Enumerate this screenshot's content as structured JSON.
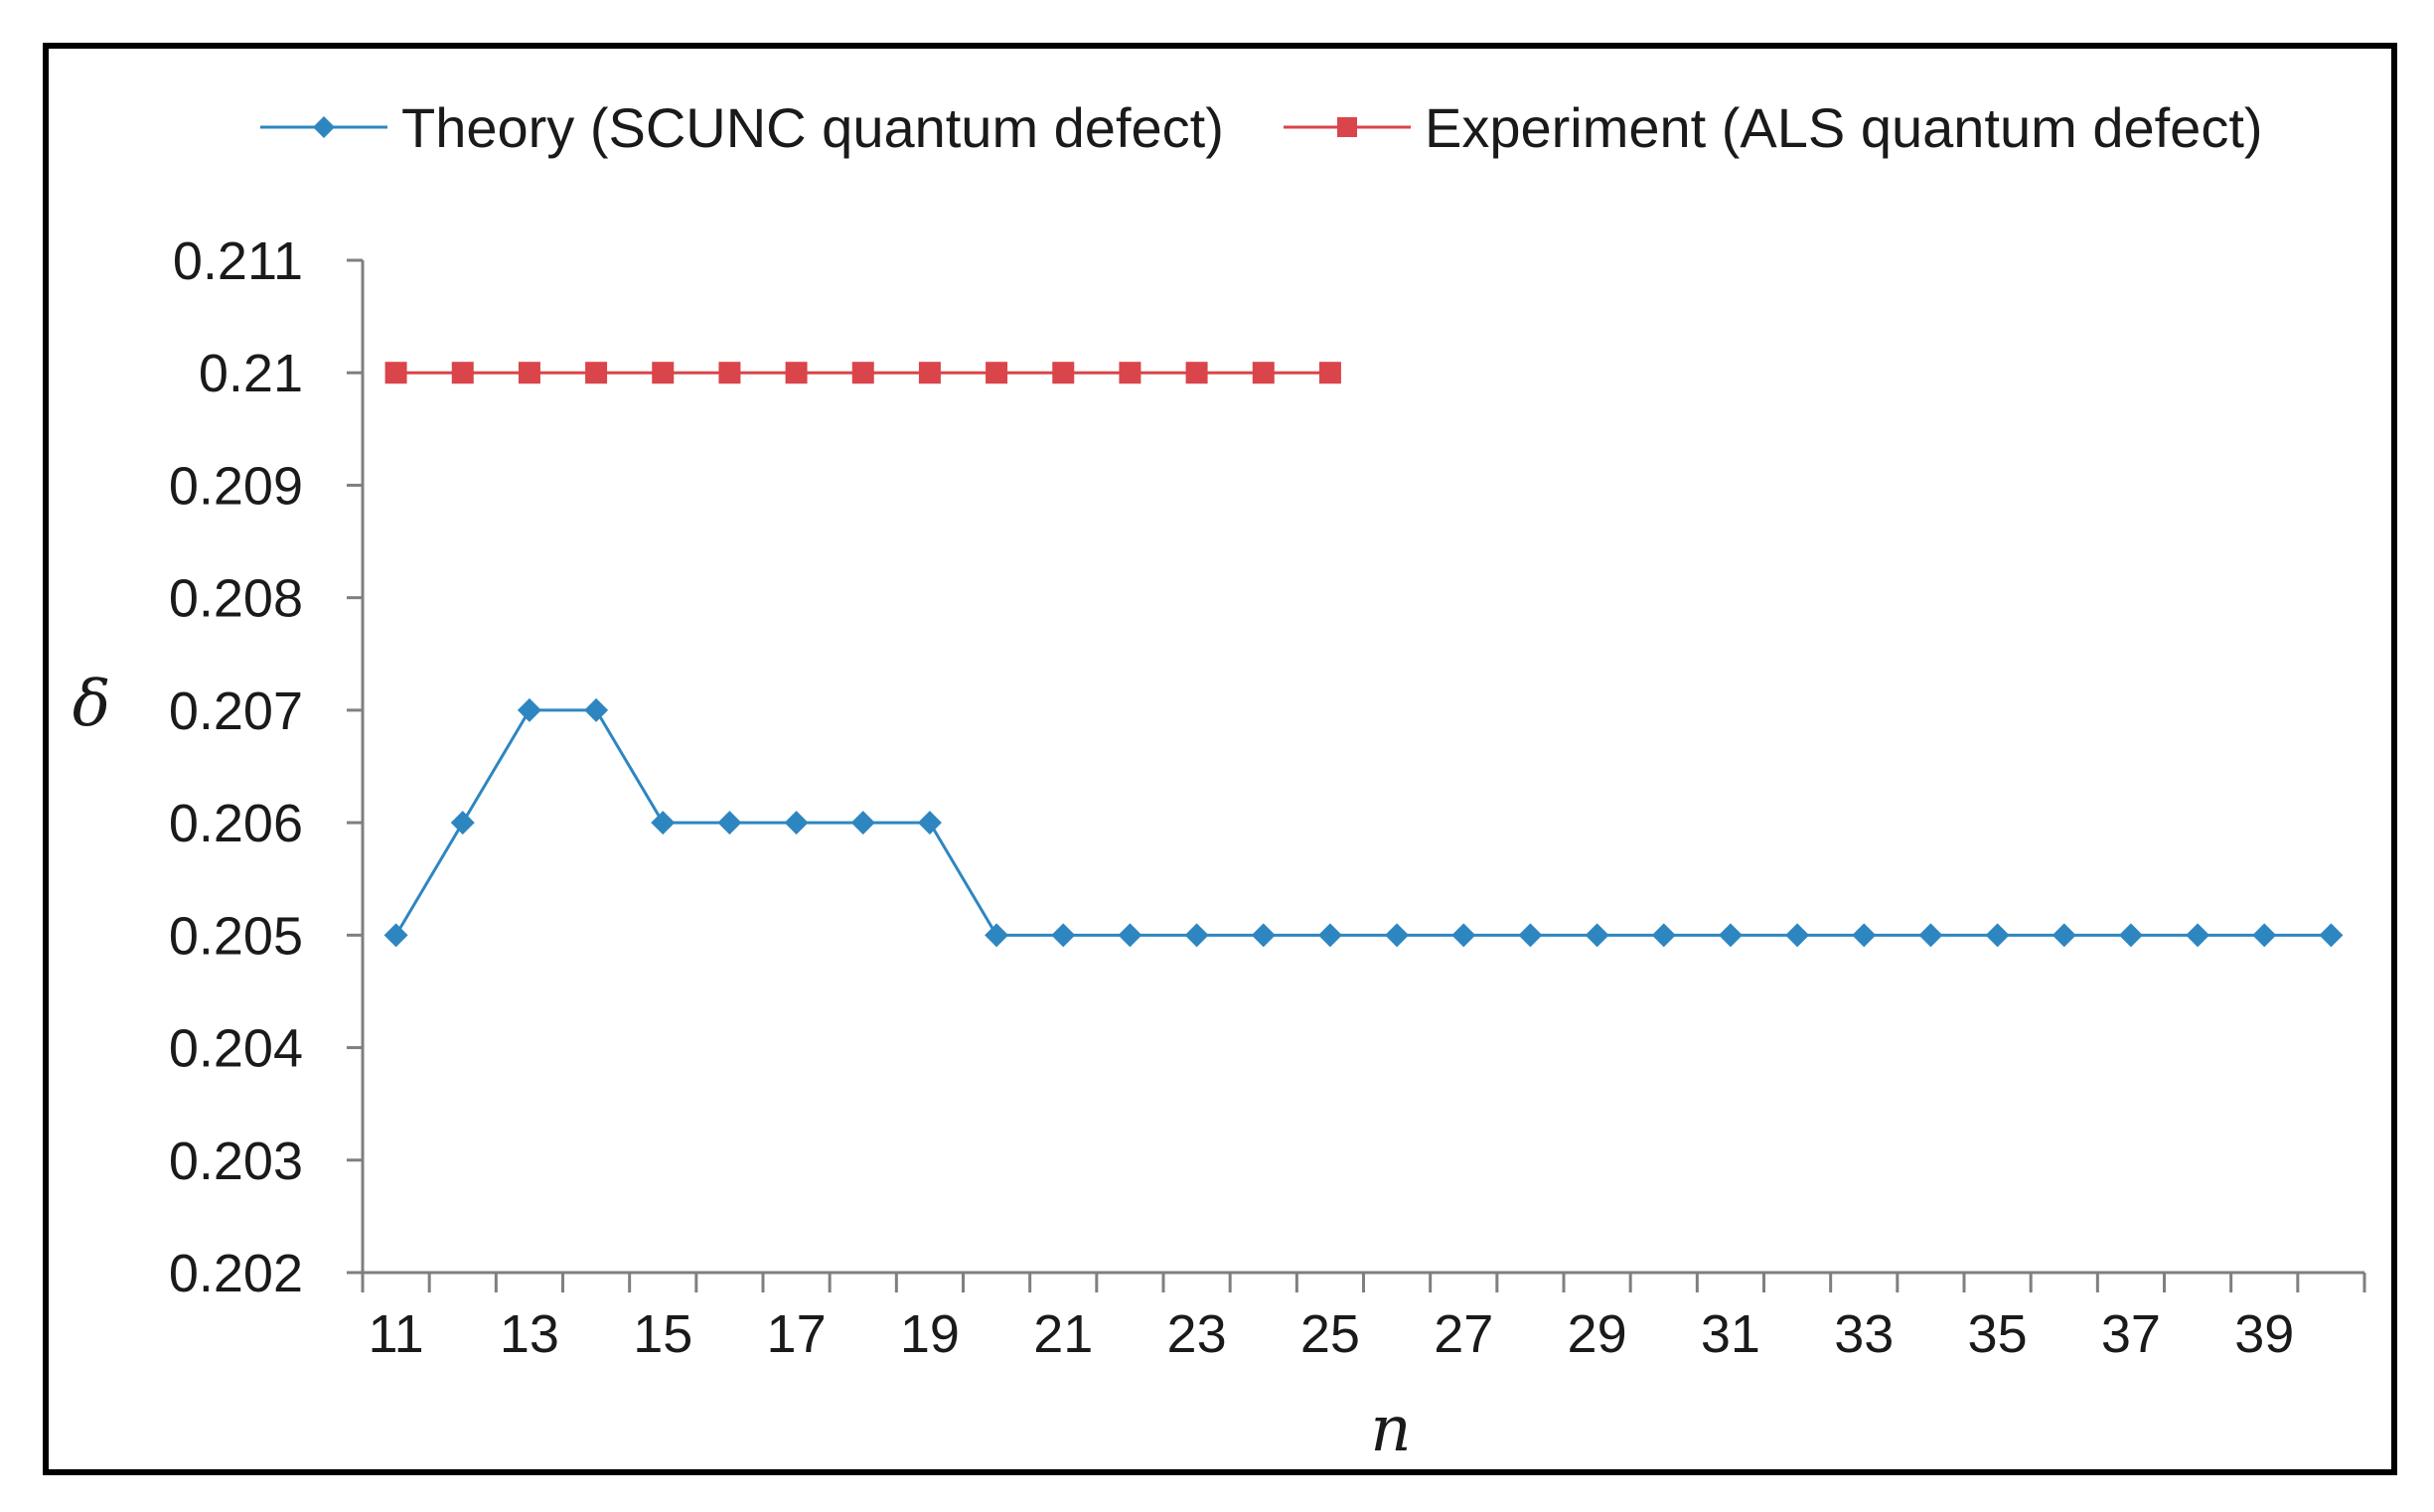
{
  "chart_data": {
    "type": "line",
    "title": "",
    "xlabel": "n",
    "ylabel": "δ",
    "x": [
      11,
      12,
      13,
      14,
      15,
      16,
      17,
      18,
      19,
      20,
      21,
      22,
      23,
      24,
      25,
      26,
      27,
      28,
      29,
      30,
      31,
      32,
      33,
      34,
      35,
      36,
      37,
      38,
      39,
      40
    ],
    "x_tick_labels": [
      "11",
      "13",
      "15",
      "17",
      "19",
      "21",
      "23",
      "25",
      "27",
      "29",
      "31",
      "33",
      "35",
      "37",
      "39"
    ],
    "y_tick_labels": [
      "0.211",
      "0.21",
      "0.209",
      "0.208",
      "0.207",
      "0.206",
      "0.205",
      "0.204",
      "0.203",
      "0.202"
    ],
    "ylim": [
      0.202,
      0.211
    ],
    "xlim": [
      10.5,
      40.5
    ],
    "grid": false,
    "legend_position": "top",
    "series": [
      {
        "name": "Theory (SCUNC quantum defect)",
        "color": "#2E86C1",
        "marker": "diamond",
        "x": [
          11,
          12,
          13,
          14,
          15,
          16,
          17,
          18,
          19,
          20,
          21,
          22,
          23,
          24,
          25,
          26,
          27,
          28,
          29,
          30,
          31,
          32,
          33,
          34,
          35,
          36,
          37,
          38,
          39,
          40
        ],
        "values": [
          0.205,
          0.206,
          0.207,
          0.207,
          0.206,
          0.206,
          0.206,
          0.206,
          0.206,
          0.205,
          0.205,
          0.205,
          0.205,
          0.205,
          0.205,
          0.205,
          0.205,
          0.205,
          0.205,
          0.205,
          0.205,
          0.205,
          0.205,
          0.205,
          0.205,
          0.205,
          0.205,
          0.205,
          0.205,
          0.205
        ]
      },
      {
        "name": "Experiment (ALS quantum defect)",
        "color": "#D9454A",
        "marker": "square",
        "x": [
          11,
          12,
          13,
          14,
          15,
          16,
          17,
          18,
          19,
          20,
          21,
          22,
          23,
          24,
          25
        ],
        "values": [
          0.21,
          0.21,
          0.21,
          0.21,
          0.21,
          0.21,
          0.21,
          0.21,
          0.21,
          0.21,
          0.21,
          0.21,
          0.21,
          0.21,
          0.21
        ]
      }
    ]
  }
}
